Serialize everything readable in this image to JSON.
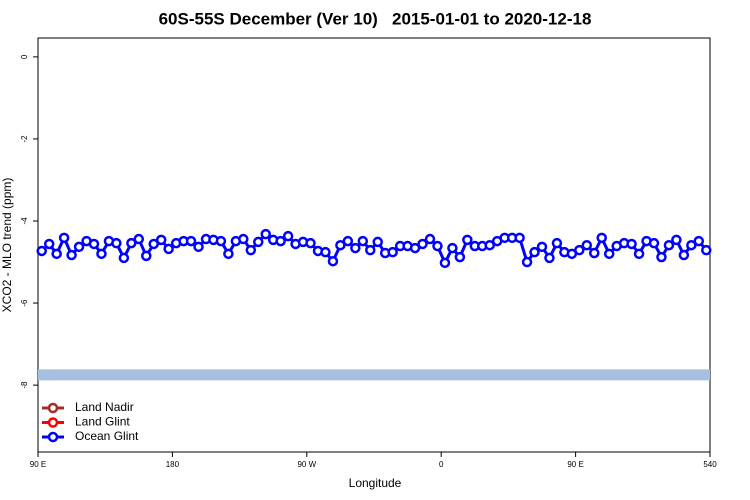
{
  "chart_data": {
    "type": "line",
    "title": "60S-55S December (Ver 10)   2015-01-01 to 2020-12-18",
    "xlabel": "Longitude",
    "ylabel": "XCO2 - MLO trend (ppm)",
    "xlim": [
      90,
      540
    ],
    "xticks": [
      {
        "value": 90,
        "label": "90 E"
      },
      180,
      {
        "value": 270,
        "label": "90 W"
      },
      {
        "value": 360,
        "label": "0"
      },
      {
        "value": 450,
        "label": "90 E"
      },
      540
    ],
    "ylim": [
      -9.63,
      0.46
    ],
    "yticks": [
      0,
      -2,
      -4,
      -6,
      -8
    ],
    "legend": "bottom-left",
    "reference_line": {
      "value": -7.75,
      "color": "#a7bfe0"
    },
    "x": [
      92.5,
      97.5,
      102.5,
      107.5,
      112.5,
      117.5,
      122.5,
      127.5,
      132.5,
      137.5,
      142.5,
      147.5,
      152.5,
      157.5,
      162.5,
      167.5,
      172.5,
      177.5,
      182.5,
      187.5,
      192.5,
      197.5,
      202.5,
      207.5,
      212.5,
      217.5,
      222.5,
      227.5,
      232.5,
      237.5,
      242.5,
      247.5,
      252.5,
      257.5,
      262.5,
      267.5,
      272.5,
      277.5,
      282.5,
      287.5,
      292.5,
      297.5,
      302.5,
      307.5,
      312.5,
      317.5,
      322.5,
      327.5,
      332.5,
      337.5,
      342.5,
      347.5,
      352.5,
      357.5,
      362.5,
      367.5,
      372.5,
      377.5,
      382.5,
      387.5,
      392.5,
      397.5,
      402.5,
      407.5,
      412.5,
      417.5,
      422.5,
      427.5,
      432.5,
      437.5,
      442.5,
      447.5,
      452.5,
      457.5,
      462.5,
      467.5,
      472.5,
      477.5,
      482.5,
      487.5,
      492.5,
      497.5,
      502.5,
      507.5,
      512.5,
      517.5,
      522.5,
      527.5,
      532.5,
      537.5
    ],
    "series": [
      {
        "name": "Land Nadir",
        "color": "#a52a2a",
        "values": [
          null,
          null,
          null,
          null,
          null,
          null,
          null,
          null,
          null,
          null,
          null,
          null,
          null,
          null,
          null,
          null,
          null,
          null,
          null,
          null,
          null,
          null,
          null,
          null,
          null,
          null,
          null,
          null,
          null,
          null,
          null,
          null,
          null,
          null,
          null,
          null,
          null,
          null,
          null,
          null,
          null,
          null,
          null,
          null,
          null,
          null,
          null,
          null,
          null,
          null,
          null,
          null,
          null,
          null,
          null,
          null,
          null,
          null,
          null,
          null,
          null,
          null,
          null,
          null,
          null,
          null,
          null,
          null,
          null,
          null,
          null,
          null,
          null,
          null,
          null,
          null,
          null,
          null,
          null,
          null,
          null,
          null,
          null,
          null,
          null,
          null,
          null,
          null,
          null,
          null
        ]
      },
      {
        "name": "Land Glint",
        "color": "#ff0000",
        "values": [
          null,
          null,
          null,
          null,
          null,
          null,
          null,
          null,
          null,
          null,
          null,
          null,
          null,
          null,
          null,
          null,
          null,
          null,
          null,
          null,
          null,
          null,
          null,
          null,
          null,
          null,
          null,
          null,
          null,
          null,
          null,
          null,
          null,
          null,
          null,
          null,
          null,
          null,
          null,
          null,
          null,
          null,
          null,
          null,
          null,
          null,
          null,
          null,
          null,
          null,
          null,
          null,
          null,
          null,
          null,
          null,
          null,
          null,
          null,
          null,
          null,
          null,
          null,
          null,
          null,
          null,
          null,
          null,
          null,
          null,
          null,
          null,
          null,
          null,
          null,
          null,
          null,
          null,
          null,
          null,
          null,
          null,
          null,
          null,
          null,
          null,
          null,
          null,
          null,
          null
        ]
      },
      {
        "name": "Ocean Glint",
        "color": "#0000ff",
        "values": [
          -4.73,
          -4.56,
          -4.8,
          -4.41,
          -4.83,
          -4.63,
          -4.49,
          -4.56,
          -4.8,
          -4.49,
          -4.54,
          -4.9,
          -4.54,
          -4.44,
          -4.85,
          -4.56,
          -4.46,
          -4.68,
          -4.54,
          -4.49,
          -4.49,
          -4.63,
          -4.44,
          -4.46,
          -4.49,
          -4.8,
          -4.49,
          -4.44,
          -4.71,
          -4.51,
          -4.32,
          -4.46,
          -4.49,
          -4.37,
          -4.56,
          -4.51,
          -4.54,
          -4.73,
          -4.76,
          -4.98,
          -4.59,
          -4.49,
          -4.66,
          -4.49,
          -4.71,
          -4.51,
          -4.78,
          -4.76,
          -4.61,
          -4.61,
          -4.66,
          -4.56,
          -4.44,
          -4.61,
          -5.02,
          -4.66,
          -4.88,
          -4.46,
          -4.61,
          -4.61,
          -4.59,
          -4.49,
          -4.41,
          -4.41,
          -4.41,
          -5.0,
          -4.76,
          -4.63,
          -4.9,
          -4.54,
          -4.76,
          -4.8,
          -4.71,
          -4.59,
          -4.78,
          -4.41,
          -4.8,
          -4.61,
          -4.54,
          -4.56,
          -4.8,
          -4.49,
          -4.54,
          -4.88,
          -4.59,
          -4.46,
          -4.83,
          -4.59,
          -4.49,
          -4.71
        ]
      }
    ]
  }
}
